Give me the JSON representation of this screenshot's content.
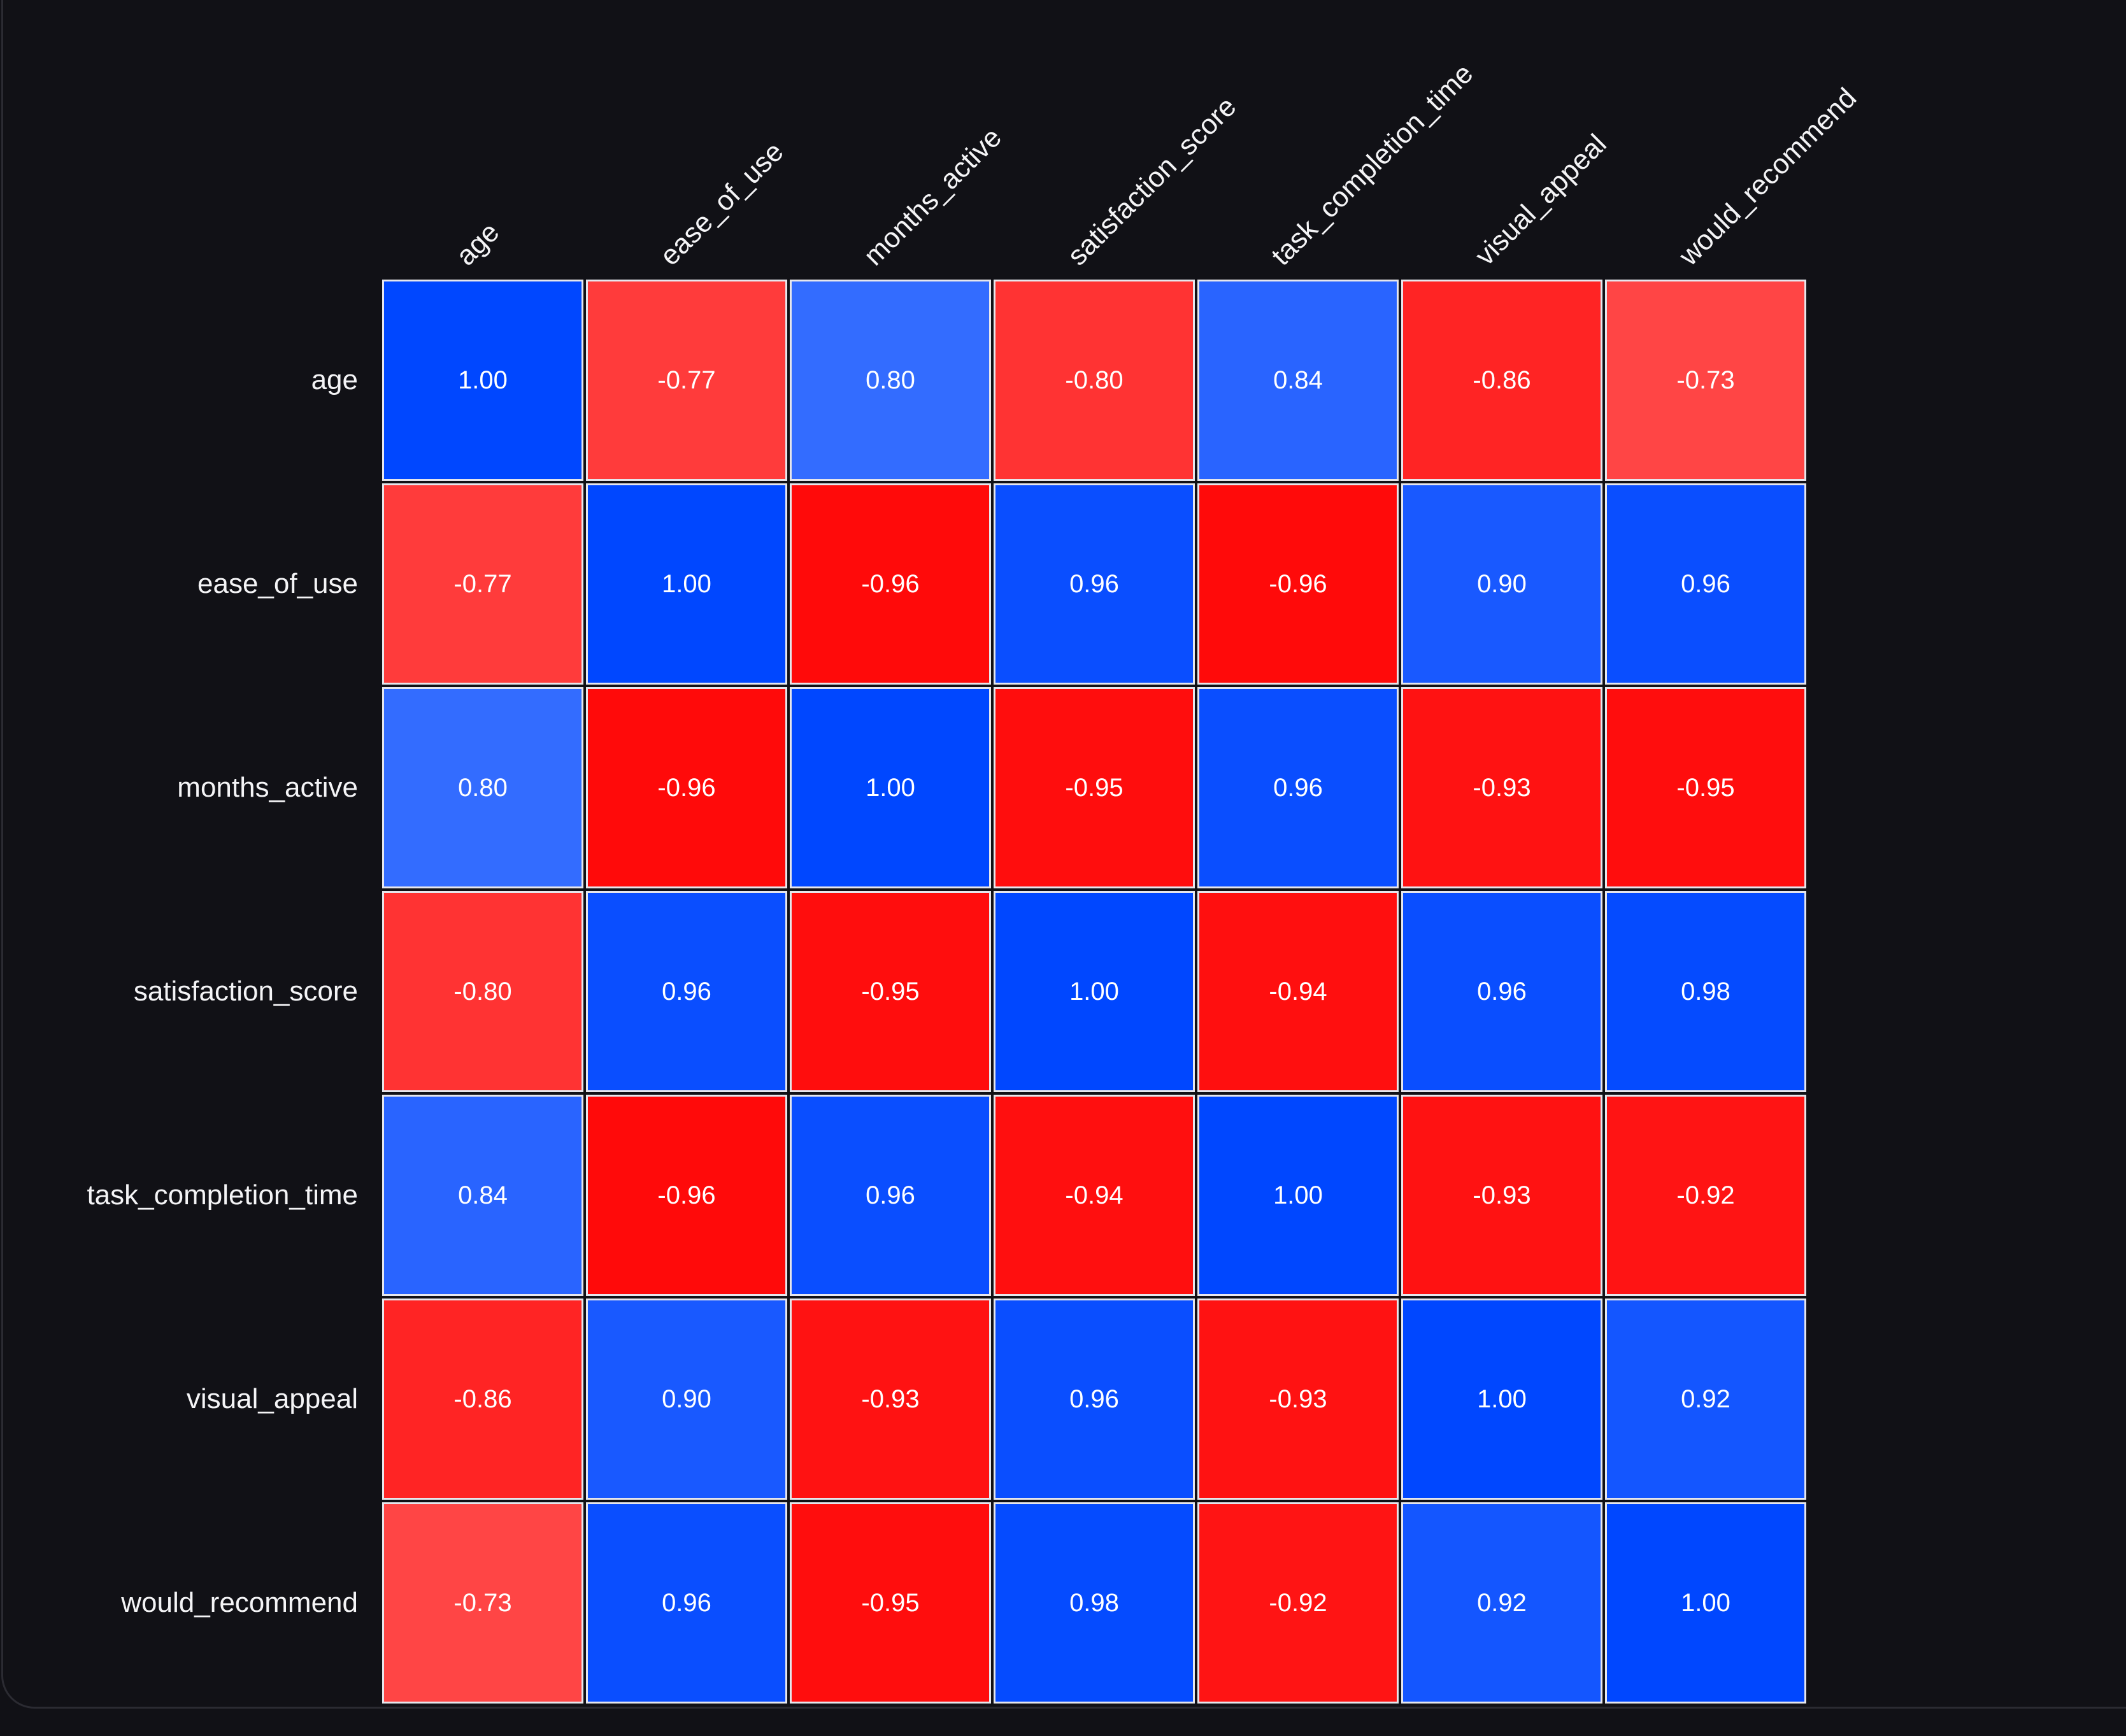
{
  "chart_data": {
    "type": "heatmap",
    "title": "",
    "xlabel": "",
    "ylabel": "",
    "x_labels": [
      "age",
      "ease_of_use",
      "months_active",
      "satisfaction_score",
      "task_completion_time",
      "visual_appeal",
      "would_recommend"
    ],
    "y_labels": [
      "age",
      "ease_of_use",
      "months_active",
      "satisfaction_score",
      "task_completion_time",
      "visual_appeal",
      "would_recommend"
    ],
    "values": [
      [
        1.0,
        -0.77,
        0.8,
        -0.8,
        0.84,
        -0.86,
        -0.73
      ],
      [
        -0.77,
        1.0,
        -0.96,
        0.96,
        -0.96,
        0.9,
        0.96
      ],
      [
        0.8,
        -0.96,
        1.0,
        -0.95,
        0.96,
        -0.93,
        -0.95
      ],
      [
        -0.8,
        0.96,
        -0.95,
        1.0,
        -0.94,
        0.96,
        0.98
      ],
      [
        0.84,
        -0.96,
        0.96,
        -0.94,
        1.0,
        -0.93,
        -0.92
      ],
      [
        -0.86,
        0.9,
        -0.93,
        0.96,
        -0.93,
        1.0,
        0.92
      ],
      [
        -0.73,
        0.96,
        -0.95,
        0.98,
        -0.92,
        0.92,
        1.0
      ]
    ],
    "value_format": "0.00",
    "vrange": [
      -1,
      1
    ],
    "colors": {
      "positive": "#0047ff",
      "negative": "#ff0000",
      "neutral": "#ffffff"
    },
    "grid": false,
    "legend": "none"
  },
  "theme": {
    "background": "#111116",
    "panel_border": "#2b2b32",
    "cell_border": "#e6e6ec",
    "text": "#f4f4f6"
  }
}
